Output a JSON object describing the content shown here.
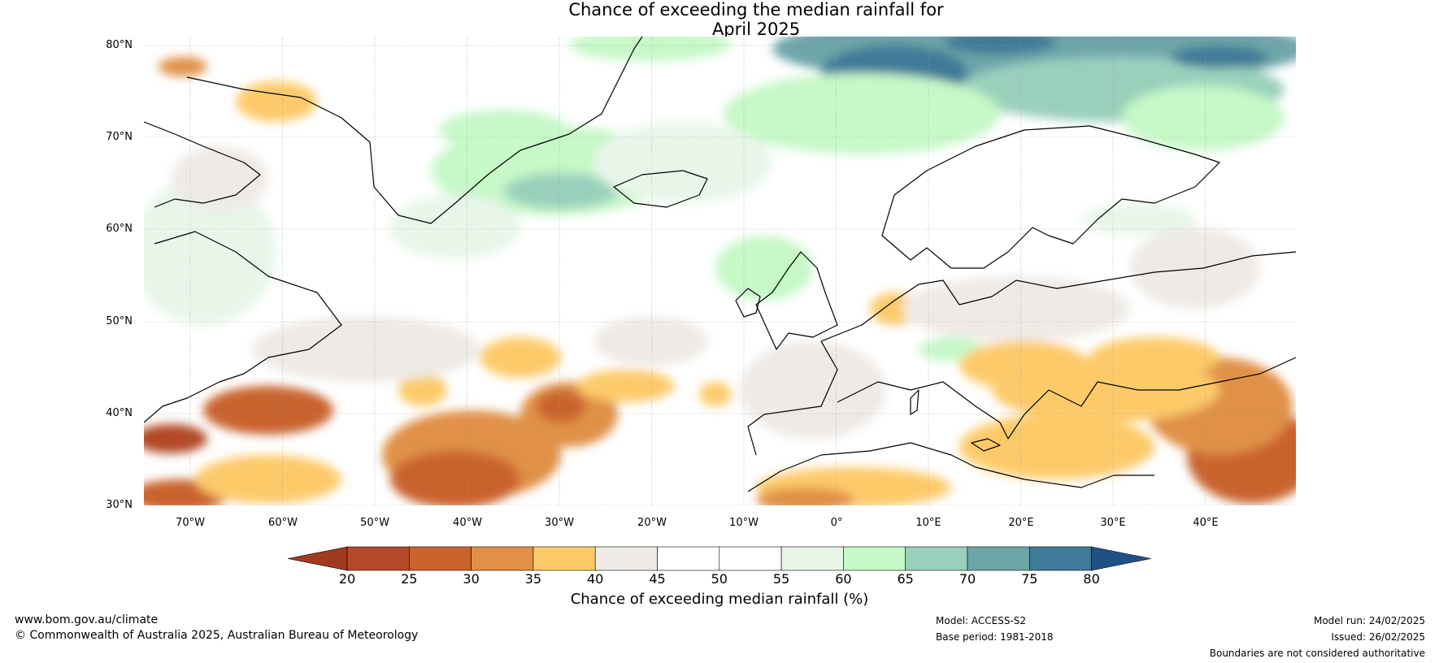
{
  "title": {
    "line1": "Chance of exceeding the median rainfall for",
    "line2": "April 2025"
  },
  "map": {
    "lat_labels": [
      "80°N",
      "70°N",
      "60°N",
      "50°N",
      "40°N",
      "30°N"
    ],
    "lon_labels": [
      "70°W",
      "60°W",
      "50°W",
      "40°W",
      "30°W",
      "20°W",
      "10°W",
      "0°",
      "10°E",
      "20°E",
      "30°E",
      "40°E"
    ]
  },
  "colorbar": {
    "title": "Chance of exceeding median rainfall (%)",
    "ticks": [
      "20",
      "25",
      "30",
      "35",
      "40",
      "45",
      "50",
      "55",
      "60",
      "65",
      "70",
      "75",
      "80"
    ],
    "colors": [
      "#a13b1f",
      "#b34a27",
      "#c9632e",
      "#e09146",
      "#fdca6a",
      "#eeeae6",
      "#ffffff",
      "#ffffff",
      "#e8f6e9",
      "#c6f8c8",
      "#9ad0bb",
      "#6ea6a8",
      "#3f7a99",
      "#1f5186"
    ]
  },
  "footer": {
    "url": "www.bom.gov.au/climate",
    "copyright": "© Commonwealth of Australia 2025, Australian Bureau of Meteorology",
    "model": "Model: ACCESS-S2",
    "base_period": "Base period: 1981-2018",
    "model_run": "Model run: 24/02/2025",
    "issued": "Issued: 26/02/2025",
    "disclaimer": "Boundaries are not considered authoritative"
  }
}
